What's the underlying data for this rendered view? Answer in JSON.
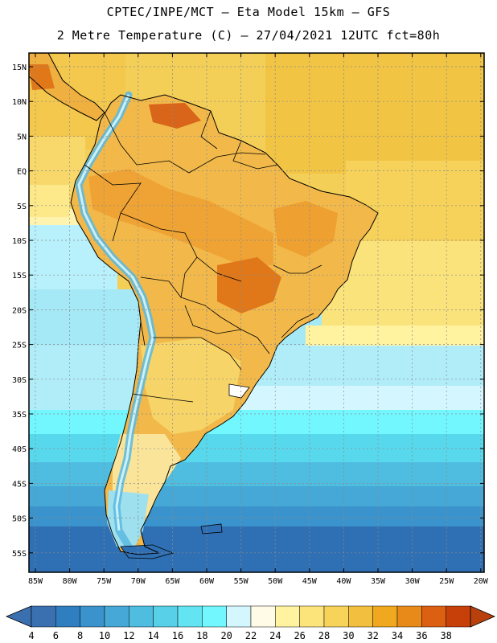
{
  "header": {
    "line1": "CPTEC/INPE/MCT –  Eta Model 15km – GFS",
    "line2": "2 Metre Temperature (C) – 27/04/2021 12UTC fct=80h"
  },
  "lat_ticks": [
    "15N",
    "10N",
    "5N",
    "EQ",
    "5S",
    "10S",
    "15S",
    "20S",
    "25S",
    "30S",
    "35S",
    "40S",
    "45S",
    "50S",
    "55S"
  ],
  "lon_ticks": [
    "85W",
    "80W",
    "75W",
    "70W",
    "65W",
    "60W",
    "55W",
    "50W",
    "45W",
    "40W",
    "35W",
    "30W",
    "25W",
    "20W"
  ],
  "colorbar": {
    "labels": [
      "4",
      "6",
      "8",
      "10",
      "12",
      "14",
      "16",
      "18",
      "20",
      "22",
      "24",
      "26",
      "28",
      "30",
      "32",
      "34",
      "36",
      "38"
    ],
    "colors": [
      "#3a6fb0",
      "#2f7fc0",
      "#3a93cc",
      "#45a8d6",
      "#4fbde0",
      "#58d0e8",
      "#62e4f2",
      "#72f7ff",
      "#d4f7ff",
      "#fffbe6",
      "#fff3a0",
      "#fde47a",
      "#f7d35a",
      "#f2c03e",
      "#f0a81e",
      "#e88a1a",
      "#dc6012",
      "#c7400a"
    ],
    "left_end": "#3a6fb0",
    "right_end": "#b8400c"
  }
}
